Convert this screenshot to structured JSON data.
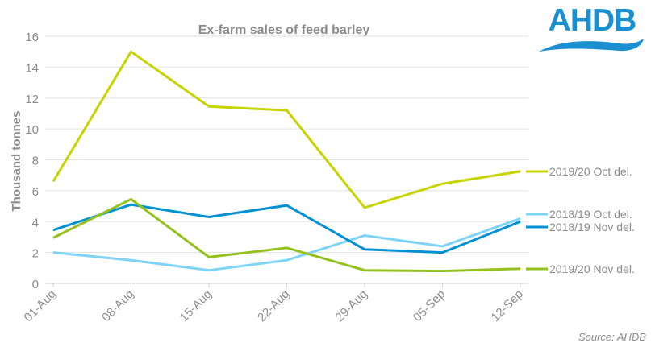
{
  "logo_text": "AHDB",
  "source": "Source: AHDB",
  "chart_data": {
    "type": "line",
    "title": "Ex-farm sales of feed barley",
    "xlabel": "",
    "ylabel": "Thousand tonnes",
    "ylim": [
      0,
      16
    ],
    "yticks": [
      0,
      2,
      4,
      6,
      8,
      10,
      12,
      14,
      16
    ],
    "grid": true,
    "legend": "right (inline labels)",
    "categories": [
      "01-Aug",
      "08-Aug",
      "15-Aug",
      "22-Aug",
      "29-Aug",
      "05-Sep",
      "12-Sep"
    ],
    "series": [
      {
        "name": "2019/20 Oct del.",
        "color": "#c8d400",
        "values": [
          6.6,
          15.0,
          11.45,
          11.2,
          4.9,
          6.45,
          7.25
        ]
      },
      {
        "name": "2018/19 Oct del.",
        "color": "#7fd3f7",
        "values": [
          2.0,
          1.5,
          0.85,
          1.5,
          3.1,
          2.4,
          4.2
        ]
      },
      {
        "name": "2018/19 Nov del.",
        "color": "#0090d4",
        "values": [
          3.45,
          5.1,
          4.3,
          5.05,
          2.2,
          2.0,
          4.0
        ]
      },
      {
        "name": "2019/20 Nov del.",
        "color": "#95c11f",
        "values": [
          2.95,
          5.45,
          1.7,
          2.3,
          0.85,
          0.8,
          0.95
        ]
      }
    ]
  }
}
